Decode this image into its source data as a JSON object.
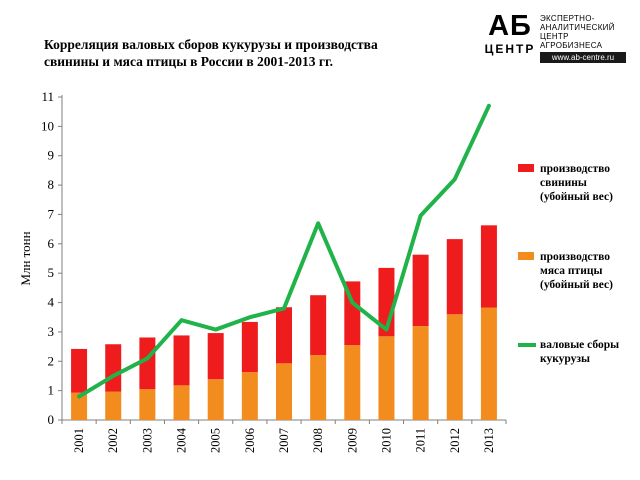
{
  "title": {
    "line1": "Корреляция валовых сборов кукурузы и производства",
    "line2": "свинины и мяса птицы в России в 2001-2013 гг."
  },
  "logo": {
    "mark_top": "АБ",
    "mark_bottom": "ЦЕНТР",
    "text_lines": [
      "ЭКСПЕРТНО-",
      "АНАЛИТИЧЕСКИЙ",
      "ЦЕНТР",
      "АГРОБИЗНЕСА"
    ],
    "url": "www.ab-centre.ru"
  },
  "chart_data": {
    "type": "bar",
    "stacked": true,
    "categories": [
      "2001",
      "2002",
      "2003",
      "2004",
      "2005",
      "2006",
      "2007",
      "2008",
      "2009",
      "2010",
      "2011",
      "2012",
      "2013"
    ],
    "ylabel": "Млн тонн",
    "xlabel": "",
    "ylim": [
      0,
      11
    ],
    "yticks": [
      "0",
      "1",
      "2",
      "3",
      "4",
      "5",
      "6",
      "7",
      "8",
      "9",
      "10",
      "11"
    ],
    "grid": false,
    "legend_position": "right",
    "series": [
      {
        "name": "производство мяса птицы (убойный вес)",
        "kind": "bar",
        "color": "#f28c1e",
        "values": [
          0.93,
          0.97,
          1.05,
          1.18,
          1.39,
          1.63,
          1.93,
          2.21,
          2.55,
          2.85,
          3.2,
          3.6,
          3.83
        ]
      },
      {
        "name": "производство свинины (убойный вес)",
        "kind": "bar",
        "color": "#ee1c1c",
        "values": [
          1.49,
          1.61,
          1.76,
          1.7,
          1.57,
          1.71,
          1.91,
          2.04,
          2.17,
          2.33,
          2.43,
          2.56,
          2.8
        ]
      },
      {
        "name": "валовые сборы кукурузы",
        "kind": "line",
        "color": "#1fb34a",
        "values": [
          0.8,
          1.5,
          2.1,
          3.4,
          3.08,
          3.5,
          3.8,
          6.7,
          4.0,
          3.08,
          6.96,
          8.2,
          10.7
        ]
      }
    ]
  },
  "legend": [
    {
      "label": "производство\nсвинины\n(убойный вес)",
      "color": "#ee1c1c",
      "kind": "bar"
    },
    {
      "label": "производство\nмяса птицы\n(убойный вес)",
      "color": "#f28c1e",
      "kind": "bar"
    },
    {
      "label": "валовые сборы\nкукурузы",
      "color": "#1fb34a",
      "kind": "line"
    }
  ]
}
